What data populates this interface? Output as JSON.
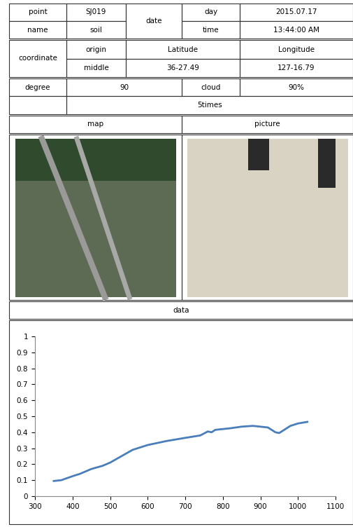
{
  "table": {
    "rows": [
      [
        "point",
        "SJ019",
        "date",
        "day",
        "2015.07.17"
      ],
      [
        "name",
        "soil",
        null,
        "time",
        "13:44:00 AM"
      ],
      [
        "coordinate",
        "origin",
        "Latitude",
        "Longitude"
      ],
      [
        null,
        "middle",
        "36-27.49",
        "127-16.79"
      ],
      [
        "degree",
        "90",
        "cloud",
        "90%"
      ],
      [
        null,
        "5times"
      ],
      [
        "map",
        "picture"
      ]
    ]
  },
  "section_title": "data",
  "chart_data": {
    "type": "line",
    "x": [
      350,
      370,
      400,
      420,
      450,
      480,
      500,
      530,
      560,
      600,
      650,
      700,
      740,
      760,
      770,
      780,
      800,
      820,
      850,
      880,
      900,
      920,
      940,
      950,
      960,
      980,
      1000,
      1025
    ],
    "values": [
      0.095,
      0.1,
      0.125,
      0.14,
      0.17,
      0.19,
      0.21,
      0.25,
      0.29,
      0.32,
      0.345,
      0.365,
      0.38,
      0.405,
      0.4,
      0.415,
      0.42,
      0.425,
      0.435,
      0.44,
      0.435,
      0.43,
      0.4,
      0.395,
      0.41,
      0.44,
      0.455,
      0.465
    ],
    "color": "#4a7ebb",
    "xlim": [
      300,
      1100
    ],
    "xticks": [
      300,
      400,
      500,
      600,
      700,
      800,
      900,
      1000,
      1100
    ],
    "ylim": [
      0,
      1
    ],
    "yticks": [
      0,
      0.1,
      0.2,
      0.3,
      0.4,
      0.5,
      0.6,
      0.7,
      0.8,
      0.9,
      1
    ],
    "grid": false
  }
}
